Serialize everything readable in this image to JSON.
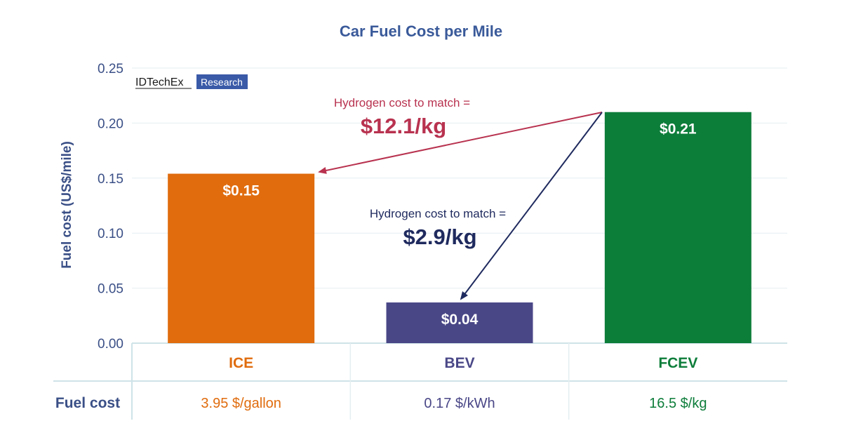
{
  "chart_data": {
    "type": "bar",
    "title": "Car Fuel Cost per Mile",
    "ylabel": "Fuel cost (US$/mile)",
    "ylim": [
      0,
      0.25
    ],
    "yticks": [
      "0.00",
      "0.05",
      "0.10",
      "0.15",
      "0.20",
      "0.25"
    ],
    "grid": true,
    "categories": [
      "ICE",
      "BEV",
      "FCEV"
    ],
    "values": [
      0.154,
      0.037,
      0.21
    ],
    "value_labels": [
      "$0.15",
      "$0.04",
      "$0.21"
    ],
    "colors": [
      "#e06c0e",
      "#4a4787",
      "#0d7d3a"
    ],
    "table": {
      "row_label": "Fuel cost",
      "values": [
        "3.95 $/gallon",
        "0.17 $/kWh",
        "16.5 $/kg"
      ]
    },
    "annotations": [
      {
        "line1": "Hydrogen cost to match =",
        "line2": "$12.1/kg",
        "color": "#b8324f",
        "from": "FCEV",
        "to": "ICE"
      },
      {
        "line1": "Hydrogen cost to match =",
        "line2": "$2.9/kg",
        "color": "#1f2a5e",
        "from": "FCEV",
        "to": "BEV"
      }
    ]
  },
  "logo": {
    "name": "IDTechEx",
    "badge": "Research",
    "badge_color": "#3a5aa8"
  }
}
